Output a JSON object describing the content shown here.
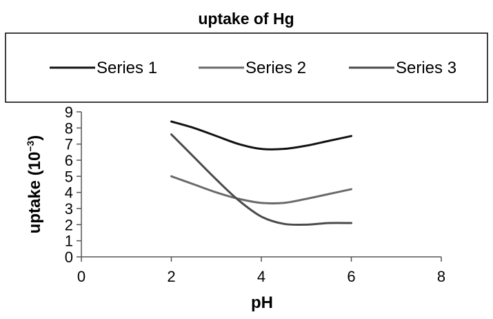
{
  "chart_data": {
    "type": "line",
    "title": "uptake of Hg",
    "xlabel": "pH",
    "ylabel": "uptake (10",
    "ylabel_sup": "−3",
    "ylabel_close": ")",
    "xlim": [
      0,
      8
    ],
    "ylim": [
      0,
      9
    ],
    "xticks": [
      0,
      2,
      4,
      6,
      8
    ],
    "yticks": [
      0,
      1,
      2,
      3,
      4,
      5,
      6,
      7,
      8,
      9
    ],
    "grid": false,
    "legend_position": "top",
    "series": [
      {
        "name": "Series 1",
        "color": "#111111",
        "x": [
          2,
          2.5,
          3,
          3.5,
          4,
          4.5,
          5,
          5.5,
          6
        ],
        "y": [
          8.4,
          8.0,
          7.5,
          7.0,
          6.7,
          6.7,
          6.9,
          7.2,
          7.5
        ]
      },
      {
        "name": "Series 2",
        "color": "#6a6a6a",
        "x": [
          2,
          2.5,
          3,
          3.5,
          4,
          4.5,
          5,
          5.5,
          6
        ],
        "y": [
          5.0,
          4.5,
          4.0,
          3.6,
          3.35,
          3.35,
          3.6,
          3.9,
          4.2
        ]
      },
      {
        "name": "Series 3",
        "color": "#4a4a4a",
        "x": [
          2,
          2.5,
          3,
          3.5,
          4,
          4.5,
          5,
          5.5,
          6
        ],
        "y": [
          7.6,
          6.2,
          4.8,
          3.5,
          2.5,
          2.05,
          2.0,
          2.1,
          2.1
        ]
      }
    ]
  }
}
